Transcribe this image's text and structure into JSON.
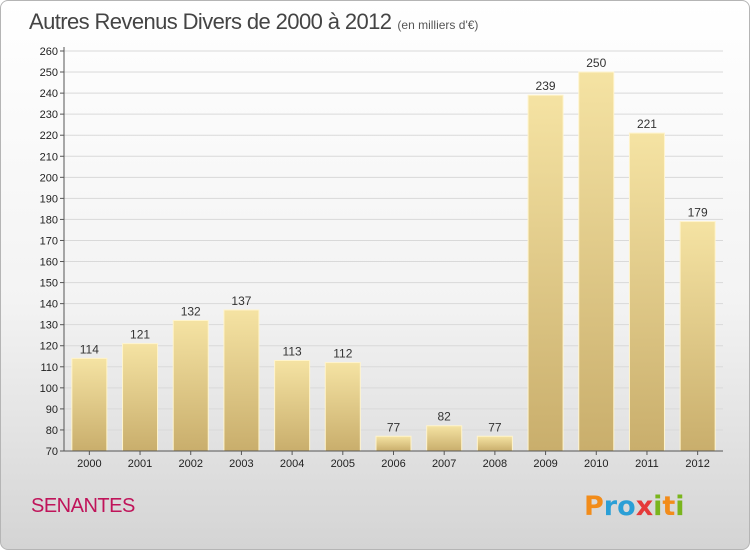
{
  "title": "Autres Revenus Divers de 2000 à 2012",
  "subtitle": "(en milliers d'€)",
  "commune": "SENANTES",
  "logo": {
    "text": "Proxiti",
    "letters": [
      {
        "ch": "P",
        "color": "#f28c1a"
      },
      {
        "ch": "r",
        "color": "#2a9fd6"
      },
      {
        "ch": "o",
        "color": "#2a9fd6"
      },
      {
        "ch": "x",
        "color": "#e53a3a"
      },
      {
        "ch": "i",
        "color": "#7ab51d"
      },
      {
        "ch": "t",
        "color": "#f28c1a"
      },
      {
        "ch": "i",
        "color": "#7ab51d"
      }
    ]
  },
  "colors": {
    "bar_light": "#f5e3a3",
    "bar_dark": "#c9ae6c",
    "grid": "#d9d9d9",
    "axis": "#555555"
  },
  "chart_data": {
    "type": "bar",
    "title": "Autres Revenus Divers de 2000 à 2012",
    "subtitle": "(en milliers d'€)",
    "categories": [
      "2000",
      "2001",
      "2002",
      "2003",
      "2004",
      "2005",
      "2006",
      "2007",
      "2008",
      "2009",
      "2010",
      "2011",
      "2012"
    ],
    "values": [
      114,
      121,
      132,
      137,
      113,
      112,
      77,
      82,
      77,
      239,
      250,
      221,
      179
    ],
    "ylim": [
      70,
      260
    ],
    "ytick_step": 10,
    "grid": true,
    "xlabel": "",
    "ylabel": ""
  }
}
